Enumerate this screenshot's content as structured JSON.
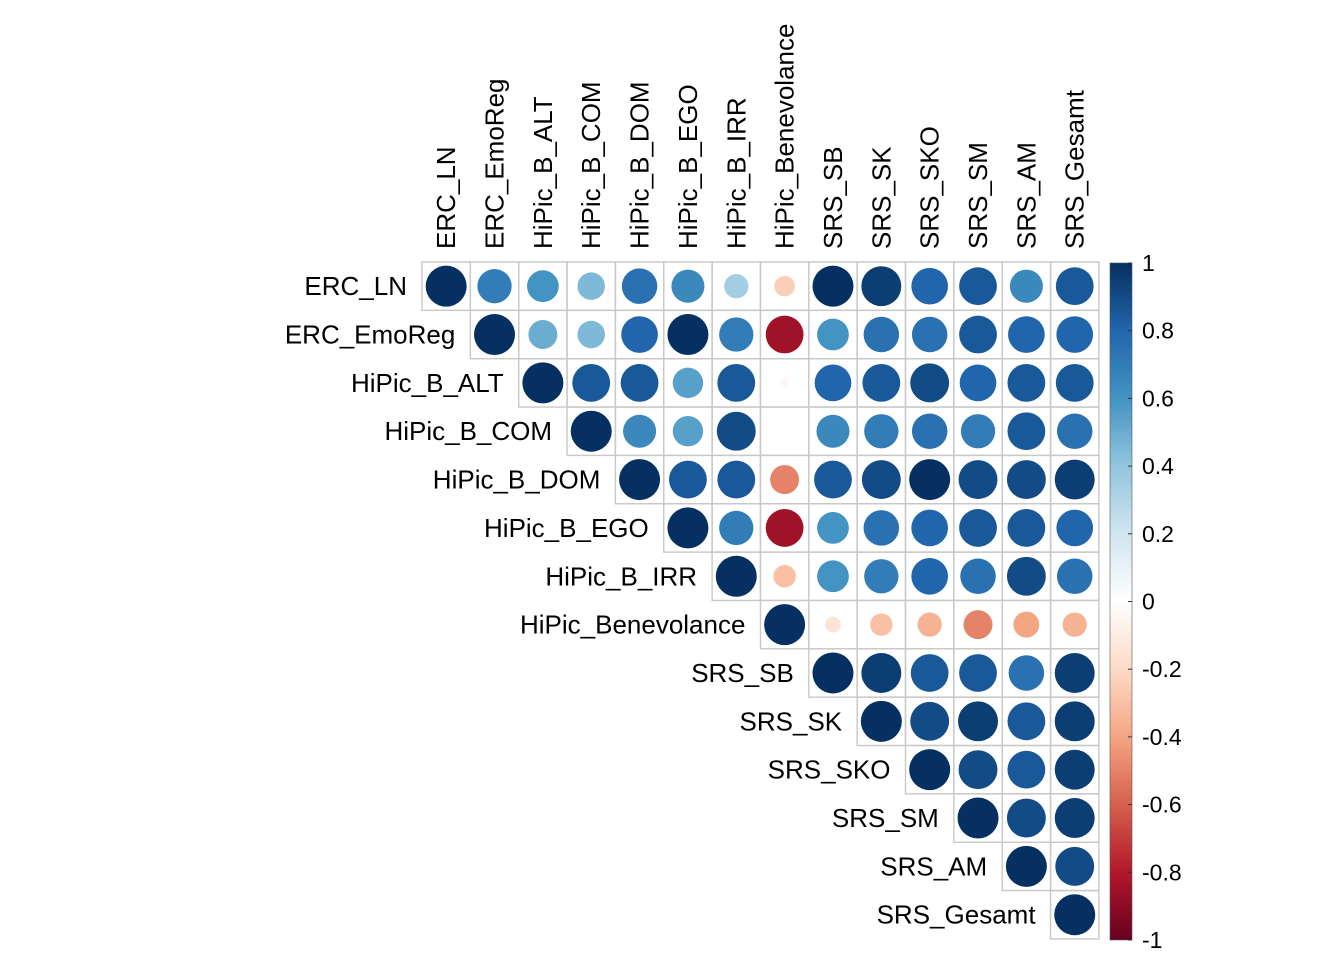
{
  "chart_data": {
    "type": "heatmap",
    "subtype": "correlation-matrix-upper-circles",
    "variables": [
      "ERC_LN",
      "ERC_EmoReg",
      "HiPic_B_ALT",
      "HiPic_B_COM",
      "HiPic_B_DOM",
      "HiPic_B_EGO",
      "HiPic_B_IRR",
      "HiPic_Benevolance",
      "SRS_SB",
      "SRS_SK",
      "SRS_SKO",
      "SRS_SM",
      "SRS_AM",
      "SRS_Gesamt"
    ],
    "matrix": [
      [
        1.0,
        0.7,
        0.6,
        0.45,
        0.75,
        0.65,
        0.35,
        -0.25,
        1.0,
        0.95,
        0.8,
        0.85,
        0.65,
        0.85
      ],
      [
        null,
        1.0,
        0.5,
        0.45,
        0.8,
        1.0,
        0.7,
        -0.85,
        0.6,
        0.75,
        0.75,
        0.85,
        0.8,
        0.8
      ],
      [
        null,
        null,
        1.0,
        0.85,
        0.85,
        0.55,
        0.85,
        -0.05,
        0.8,
        0.85,
        0.9,
        0.8,
        0.85,
        0.85
      ],
      [
        null,
        null,
        null,
        1.0,
        0.65,
        0.55,
        0.9,
        0.0,
        0.65,
        0.7,
        0.75,
        0.7,
        0.85,
        0.75
      ],
      [
        null,
        null,
        null,
        null,
        1.0,
        0.85,
        0.85,
        -0.5,
        0.85,
        0.9,
        1.0,
        0.9,
        0.9,
        0.95
      ],
      [
        null,
        null,
        null,
        null,
        null,
        1.0,
        0.7,
        -0.85,
        0.6,
        0.75,
        0.8,
        0.85,
        0.85,
        0.8
      ],
      [
        null,
        null,
        null,
        null,
        null,
        null,
        1.0,
        -0.3,
        0.6,
        0.7,
        0.8,
        0.75,
        0.9,
        0.75
      ],
      [
        null,
        null,
        null,
        null,
        null,
        null,
        null,
        1.0,
        -0.15,
        -0.3,
        -0.35,
        -0.5,
        -0.4,
        -0.35
      ],
      [
        null,
        null,
        null,
        null,
        null,
        null,
        null,
        null,
        1.0,
        0.95,
        0.85,
        0.85,
        0.75,
        0.95
      ],
      [
        null,
        null,
        null,
        null,
        null,
        null,
        null,
        null,
        null,
        1.0,
        0.9,
        0.95,
        0.85,
        0.95
      ],
      [
        null,
        null,
        null,
        null,
        null,
        null,
        null,
        null,
        null,
        null,
        1.0,
        0.9,
        0.85,
        0.95
      ],
      [
        null,
        null,
        null,
        null,
        null,
        null,
        null,
        null,
        null,
        null,
        null,
        1.0,
        0.9,
        0.95
      ],
      [
        null,
        null,
        null,
        null,
        null,
        null,
        null,
        null,
        null,
        null,
        null,
        null,
        1.0,
        0.9
      ],
      [
        null,
        null,
        null,
        null,
        null,
        null,
        null,
        null,
        null,
        null,
        null,
        null,
        null,
        1.0
      ]
    ],
    "colorbar": {
      "range": [
        -1,
        1
      ],
      "ticks": [
        "1",
        "0.8",
        "0.6",
        "0.4",
        "0.2",
        "0",
        "-0.2",
        "-0.4",
        "-0.6",
        "-0.8",
        "-1"
      ],
      "low_color": "#67001F",
      "mid_color": "#FFFFFF",
      "high_color": "#053061"
    },
    "title": "",
    "grid": true
  }
}
